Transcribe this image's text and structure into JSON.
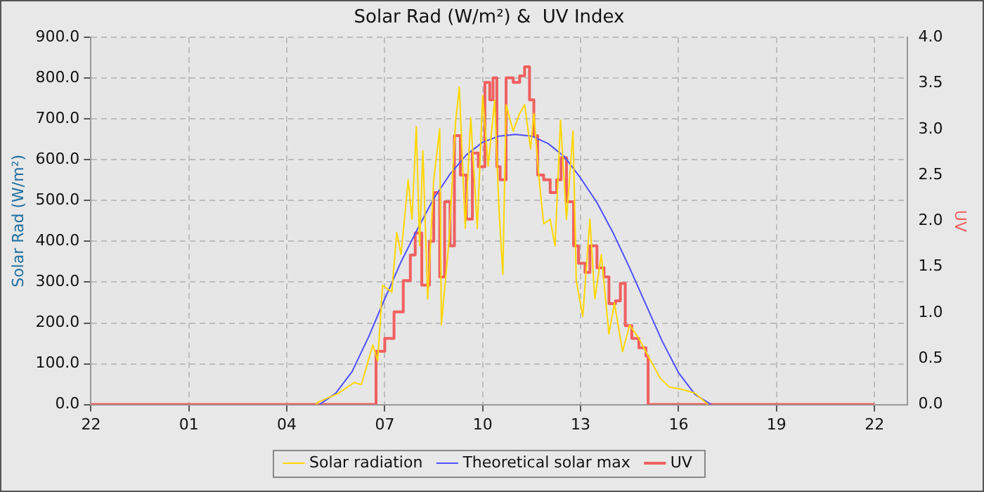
{
  "chart_data": {
    "type": "line",
    "title": "Solar Rad (W/m²) &  UV Index",
    "ylabel": "Solar Rad (W/m²)",
    "y2label": "UV",
    "xlim": [
      "--01-01T22:00",
      "--01-02T23:00"
    ],
    "xticks": [
      {
        "value": "--01-01T22:00",
        "label": "22"
      },
      {
        "value": "--01-02T01:00",
        "label": "01"
      },
      {
        "value": "--01-02T04:00",
        "label": "04"
      },
      {
        "value": "--01-02T07:00",
        "label": "07"
      },
      {
        "value": "--01-02T10:00",
        "label": "10"
      },
      {
        "value": "--01-02T13:00",
        "label": "13"
      },
      {
        "value": "--01-02T16:00",
        "label": "16"
      },
      {
        "value": "--01-02T19:00",
        "label": "19"
      },
      {
        "value": "--01-02T22:00",
        "label": "22"
      }
    ],
    "ylim": [
      0,
      900
    ],
    "yticks": [
      {
        "value": 0,
        "label": "0.0"
      },
      {
        "value": 100,
        "label": "100.0"
      },
      {
        "value": 200,
        "label": "200.0"
      },
      {
        "value": 300,
        "label": "300.0"
      },
      {
        "value": 400,
        "label": "400.0"
      },
      {
        "value": 500,
        "label": "500.0"
      },
      {
        "value": 600,
        "label": "600.0"
      },
      {
        "value": 700,
        "label": "700.0"
      },
      {
        "value": 800,
        "label": "800.0"
      },
      {
        "value": 900,
        "label": "900.0"
      }
    ],
    "y2lim": [
      0,
      4
    ],
    "y2ticks": [
      {
        "value": 0,
        "label": "0.0"
      },
      {
        "value": 0.5,
        "label": "0.5"
      },
      {
        "value": 1,
        "label": "1.0"
      },
      {
        "value": 1.5,
        "label": "1.5"
      },
      {
        "value": 2,
        "label": "2.0"
      },
      {
        "value": 2.5,
        "label": "2.5"
      },
      {
        "value": 3,
        "label": "3.0"
      },
      {
        "value": 3.5,
        "label": "3.5"
      },
      {
        "value": 4,
        "label": "4.0"
      }
    ],
    "grid": true,
    "legend": "bottom",
    "marker": "none",
    "line_style": "solid",
    "series": [
      {
        "name": "Solar radiation",
        "color": "#ffd700",
        "x": [
          "--01-02T04:54",
          "--01-02T04:56",
          "--01-02T05:34",
          "--01-02T06:04",
          "--01-02T06:17",
          "--01-02T06:38",
          "--01-02T06:47",
          "--01-02T06:56",
          "--01-02T07:13",
          "--01-02T07:22",
          "--01-02T07:30",
          "--01-02T07:43",
          "--01-02T07:50",
          "--01-02T07:58",
          "--01-02T08:04",
          "--01-02T08:10",
          "--01-02T08:19",
          "--01-02T08:30",
          "--01-02T08:41",
          "--01-02T08:44",
          "--01-02T08:58",
          "--01-02T09:10",
          "--01-02T09:17",
          "--01-02T09:28",
          "--01-02T09:38",
          "--01-02T09:50",
          "--01-02T10:00",
          "--01-02T10:10",
          "--01-02T10:22",
          "--01-02T10:30",
          "--01-02T10:37",
          "--01-02T10:43",
          "--01-02T10:56",
          "--01-02T11:08",
          "--01-02T11:17",
          "--01-02T11:28",
          "--01-02T11:34",
          "--01-02T11:43",
          "--01-02T11:52",
          "--01-02T12:04",
          "--01-02T12:13",
          "--01-02T12:23",
          "--01-02T12:34",
          "--01-02T12:46",
          "--01-02T12:52",
          "--01-02T13:04",
          "--01-02T13:17",
          "--01-02T13:26",
          "--01-02T13:38",
          "--01-02T13:52",
          "--01-02T14:02",
          "--01-02T14:17",
          "--01-02T14:30",
          "--01-02T14:47",
          "--01-02T15:04",
          "--01-02T15:26",
          "--01-02T15:43",
          "--01-02T16:04",
          "--01-02T16:30",
          "--01-02T16:54"
        ],
        "values": [
          0,
          5,
          27,
          54,
          49,
          146,
          108,
          292,
          276,
          422,
          368,
          551,
          454,
          681,
          389,
          622,
          259,
          551,
          676,
          195,
          400,
          692,
          778,
          432,
          703,
          432,
          757,
          584,
          746,
          476,
          319,
          735,
          670,
          714,
          735,
          627,
          714,
          562,
          443,
          454,
          389,
          697,
          454,
          670,
          303,
          216,
          454,
          259,
          368,
          173,
          249,
          130,
          195,
          162,
          119,
          65,
          43,
          38,
          28,
          0
        ]
      },
      {
        "name": "Theoretical solar max",
        "color": "#5050ff",
        "x": [
          "--01-02T05:00",
          "--01-02T05:30",
          "--01-02T06:00",
          "--01-02T06:30",
          "--01-02T07:00",
          "--01-02T07:30",
          "--01-02T08:00",
          "--01-02T08:30",
          "--01-02T09:00",
          "--01-02T09:30",
          "--01-02T10:00",
          "--01-02T10:30",
          "--01-02T11:00",
          "--01-02T11:30",
          "--01-02T12:00",
          "--01-02T12:30",
          "--01-02T13:00",
          "--01-02T13:30",
          "--01-02T14:00",
          "--01-02T14:30",
          "--01-02T15:00",
          "--01-02T15:30",
          "--01-02T16:00",
          "--01-02T16:30",
          "--01-02T17:00"
        ],
        "values": [
          0,
          28,
          81,
          165,
          259,
          350,
          430,
          505,
          565,
          612,
          643,
          658,
          662,
          658,
          640,
          608,
          555,
          495,
          420,
          335,
          245,
          155,
          78,
          25,
          0
        ]
      },
      {
        "name": "UV",
        "type": "step",
        "axis": "y2",
        "color": "#f06060",
        "x": [
          "--01-01T22:00",
          "--01-02T06:43",
          "--01-02T06:44",
          "--01-02T07:00",
          "--01-02T07:17",
          "--01-02T07:34",
          "--01-02T07:47",
          "--01-02T07:56",
          "--01-02T08:08",
          "--01-02T08:22",
          "--01-02T08:30",
          "--01-02T08:41",
          "--01-02T08:50",
          "--01-02T09:00",
          "--01-02T09:08",
          "--01-02T09:19",
          "--01-02T09:30",
          "--01-02T09:41",
          "--01-02T09:52",
          "--01-02T10:04",
          "--01-02T10:13",
          "--01-02T10:19",
          "--01-02T10:26",
          "--01-02T10:32",
          "--01-02T10:43",
          "--01-02T10:56",
          "--01-02T11:08",
          "--01-02T11:17",
          "--01-02T11:26",
          "--01-02T11:34",
          "--01-02T11:41",
          "--01-02T11:52",
          "--01-02T12:04",
          "--01-02T12:16",
          "--01-02T12:24",
          "--01-02T12:34",
          "--01-02T12:47",
          "--01-02T12:56",
          "--01-02T13:08",
          "--01-02T13:17",
          "--01-02T13:30",
          "--01-02T13:43",
          "--01-02T13:52",
          "--01-02T14:04",
          "--01-02T14:13",
          "--01-02T14:22",
          "--01-02T14:34",
          "--01-02T14:47",
          "--01-02T15:00",
          "--01-02T15:04",
          "--01-02T22:00"
        ],
        "values": [
          0,
          0,
          0.58,
          0.72,
          1.01,
          1.35,
          1.63,
          1.87,
          1.3,
          1.78,
          2.31,
          1.39,
          2.21,
          1.73,
          2.93,
          2.5,
          2.02,
          2.74,
          2.59,
          3.51,
          3.32,
          3.56,
          2.59,
          2.45,
          3.56,
          3.51,
          3.58,
          3.68,
          3.32,
          2.93,
          2.5,
          2.45,
          2.31,
          2.45,
          2.69,
          2.21,
          1.73,
          1.54,
          1.44,
          1.73,
          1.49,
          1.39,
          1.1,
          1.13,
          1.32,
          0.86,
          0.72,
          0.62,
          0.53,
          0,
          0
        ]
      }
    ]
  }
}
